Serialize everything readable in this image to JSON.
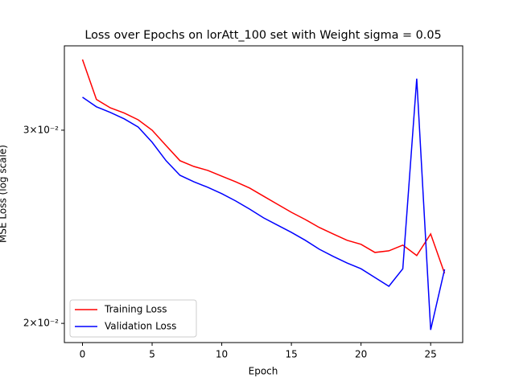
{
  "chart_data": {
    "type": "line",
    "title": "Loss over Epochs on lorAtt_100 set with Weight sigma = 0.05",
    "x_label": "Epoch",
    "y_label": "MSE Loss (log scale)",
    "x": [
      0,
      1,
      2,
      3,
      4,
      5,
      6,
      7,
      8,
      9,
      10,
      11,
      12,
      13,
      14,
      15,
      16,
      17,
      18,
      19,
      20,
      21,
      22,
      23,
      24,
      25,
      26
    ],
    "series": [
      {
        "name": "Training Loss",
        "color": "#ff0000",
        "values": [
          0.0348,
          0.032,
          0.03144,
          0.0311,
          0.03066,
          0.03,
          0.02905,
          0.02814,
          0.0278,
          0.02757,
          0.02724,
          0.02692,
          0.02657,
          0.02612,
          0.02568,
          0.02525,
          0.02487,
          0.02446,
          0.02413,
          0.02381,
          0.02361,
          0.02321,
          0.02329,
          0.02357,
          0.02306,
          0.02413,
          0.02221
        ]
      },
      {
        "name": "Validation Loss",
        "color": "#0000ff",
        "values": [
          0.03215,
          0.03151,
          0.03114,
          0.03072,
          0.0302,
          0.02925,
          0.02814,
          0.02729,
          0.02692,
          0.02661,
          0.02626,
          0.02586,
          0.02542,
          0.02496,
          0.02458,
          0.02421,
          0.02381,
          0.02337,
          0.02302,
          0.0227,
          0.02243,
          0.02202,
          0.02162,
          0.02243,
          0.03343,
          0.01973,
          0.0224
        ]
      }
    ],
    "xlim": [
      -1.3,
      27.3
    ],
    "xticks": [
      0,
      5,
      10,
      15,
      20,
      25
    ],
    "ylim": [
      0.01921,
      0.03581
    ],
    "log_y": true,
    "yticks": [
      {
        "value": 0.02,
        "label": "2×10⁻²"
      },
      {
        "value": 0.03,
        "label": "3×10⁻²"
      }
    ],
    "legend": "lower left"
  }
}
